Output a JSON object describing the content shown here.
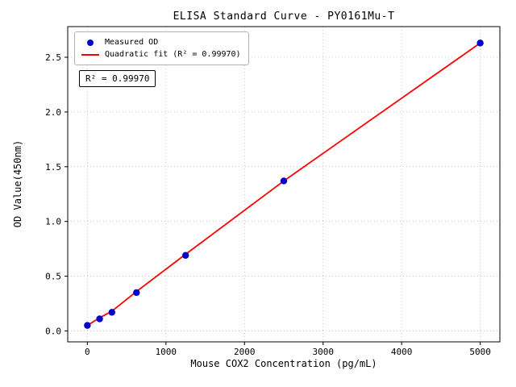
{
  "chart_data": {
    "type": "scatter",
    "title": "ELISA Standard Curve - PY0161Mu-T",
    "xlabel": "Mouse COX2 Concentration (pg/mL)",
    "ylabel": "OD Value(450nm)",
    "xlim": [
      -250,
      5250
    ],
    "ylim": [
      -0.1,
      2.78
    ],
    "xticks": [
      0,
      1000,
      2000,
      3000,
      4000,
      5000
    ],
    "xtick_labels": [
      "0",
      "1000",
      "2000",
      "3000",
      "4000",
      "5000"
    ],
    "yticks": [
      0.0,
      0.5,
      1.0,
      1.5,
      2.0,
      2.5
    ],
    "ytick_labels": [
      "0.0",
      "0.5",
      "1.0",
      "1.5",
      "2.0",
      "2.5"
    ],
    "grid": true,
    "legend_position": "upper left",
    "annotation": "R² = 0.99970",
    "style": {
      "marker_color": "#0000cd",
      "line_color": "#ff0000",
      "grid_color": "#bbbbbb",
      "axis_color": "#000000",
      "background": "#ffffff"
    },
    "series": [
      {
        "name": "Measured OD",
        "kind": "scatter",
        "color": "#0000cd",
        "x": [
          0,
          156,
          312,
          625,
          1250,
          2500,
          5000
        ],
        "y": [
          0.05,
          0.11,
          0.17,
          0.35,
          0.69,
          1.37,
          2.63
        ]
      },
      {
        "name": "Quadratic fit (R² = 0.99970)",
        "kind": "line",
        "color": "#ff0000",
        "x": [
          0,
          156,
          312,
          625,
          1250,
          2500,
          5000
        ],
        "y": [
          0.05,
          0.12,
          0.18,
          0.36,
          0.7,
          1.37,
          2.63
        ]
      }
    ]
  }
}
